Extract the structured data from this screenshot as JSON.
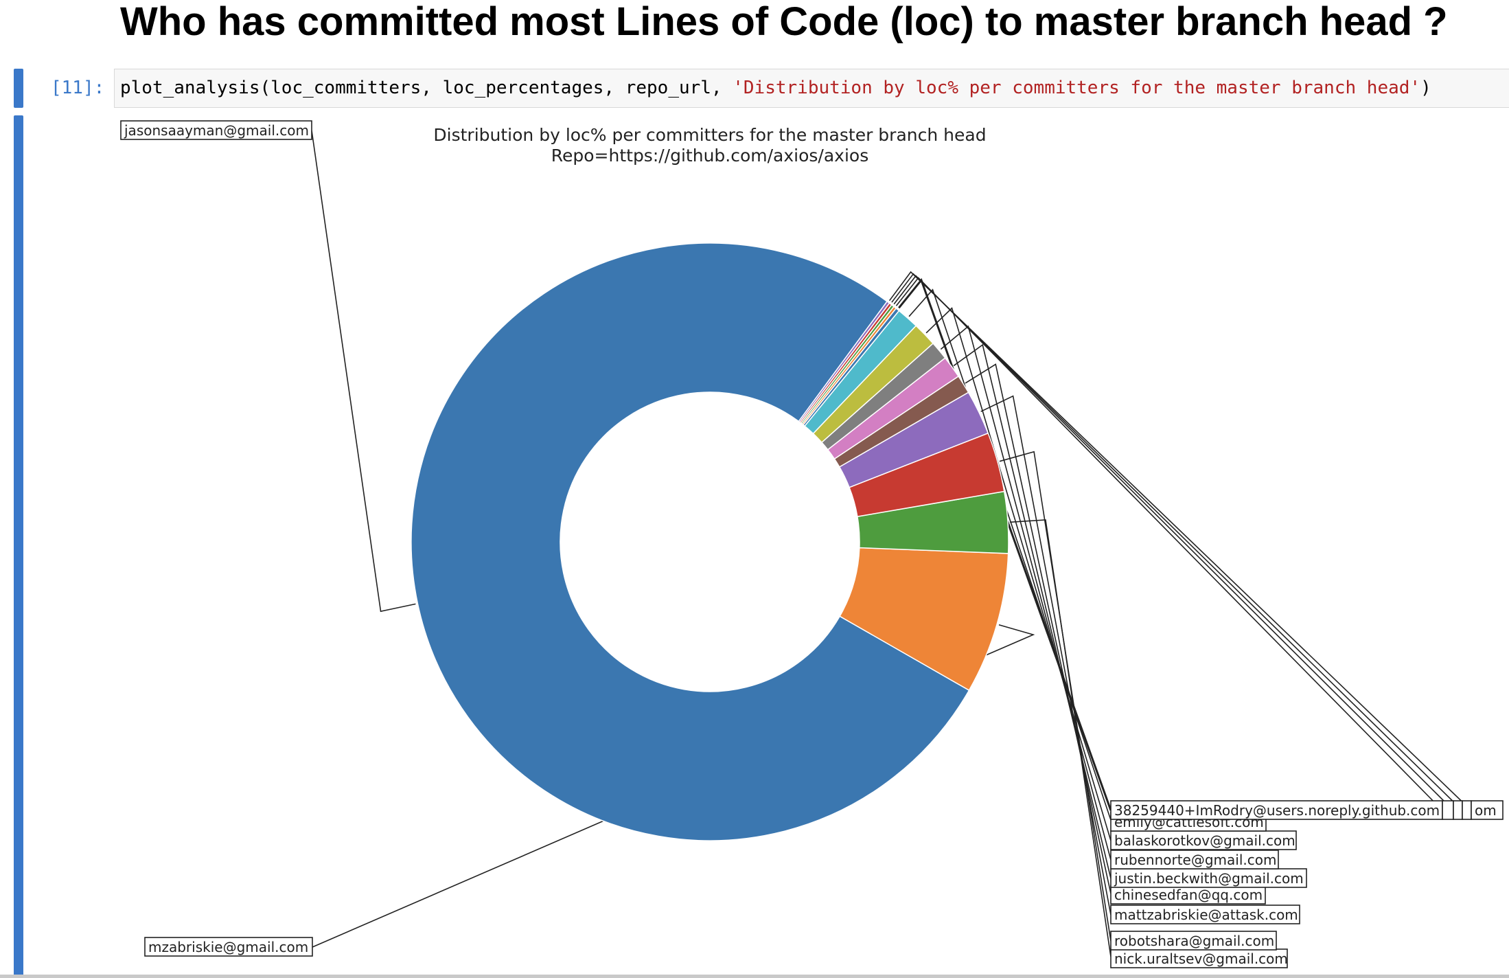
{
  "heading": "Who has committed most Lines of Code (loc) to master branch head ?",
  "cell": {
    "prompt": "[11]:",
    "code_plain": "plot_analysis(loc_committers, loc_percentages, repo_url, ",
    "code_string": "'Distribution by loc% per committers for the master branch head'",
    "code_close": ")"
  },
  "colors": {
    "cell_accent": "#3a78c9"
  },
  "chart_data": {
    "type": "pie",
    "donut": true,
    "title": "Distribution by loc% per committers for the master branch head",
    "subtitle": "Repo=https://github.com/axios/axios",
    "slices": [
      {
        "label": "jasonsaayman@gmail.com",
        "value": 76.3,
        "color": "#3b77b0"
      },
      {
        "label": "mzabriskie@gmail.com",
        "value": 7.6,
        "color": "#ee8537"
      },
      {
        "label": "nick.uraltsev@gmail.com",
        "value": 3.3,
        "color": "#4e9c3e"
      },
      {
        "label": "robotshara@gmail.com",
        "value": 3.2,
        "color": "#c73a31"
      },
      {
        "label": "mattzabriskie@attask.com",
        "value": 2.4,
        "color": "#8d6bbd"
      },
      {
        "label": "chinesedfan@qq.com",
        "value": 1.0,
        "color": "#855a4f"
      },
      {
        "label": "justin.beckwith@gmail.com",
        "value": 1.2,
        "color": "#d37fc3"
      },
      {
        "label": "rubennorte@gmail.com",
        "value": 1.0,
        "color": "#7f7f7f"
      },
      {
        "label": "balaskorotkov@gmail.com",
        "value": 1.3,
        "color": "#bcbd3f"
      },
      {
        "label": "emily@cattlesoft.com",
        "value": 1.2,
        "color": "#4fbacb"
      },
      {
        "label": "38259440+ImRodry@users.noreply.github.com",
        "value": 0.2,
        "color": "#3b77b0"
      },
      {
        "label": "",
        "value": 0.15,
        "color": "#ee8537"
      },
      {
        "label": "",
        "value": 0.15,
        "color": "#4e9c3e"
      },
      {
        "label": "",
        "value": 0.15,
        "color": "#c73a31"
      },
      {
        "label": "om",
        "value": 0.15,
        "color": "#8d6bbd"
      }
    ]
  }
}
